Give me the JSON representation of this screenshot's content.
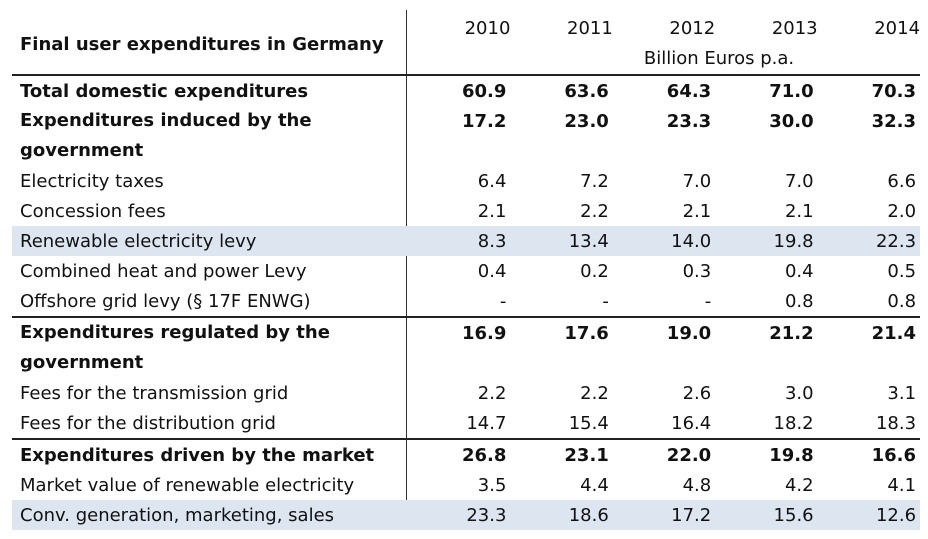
{
  "table": {
    "title": "Final user expenditures in Germany",
    "years": [
      "2010",
      "2011",
      "2012",
      "2013",
      "2014"
    ],
    "unit": "Billion Euros p.a.",
    "rows": [
      {
        "label": "Total domestic expenditures",
        "values": [
          "60.9",
          "63.6",
          "64.3",
          "71.0",
          "70.3"
        ],
        "bold": true,
        "topline": true,
        "tall": false,
        "shade": false
      },
      {
        "label": "Expenditures induced by  the government",
        "values": [
          "17.2",
          "23.0",
          "23.3",
          "30.0",
          "32.3"
        ],
        "bold": true,
        "topline": false,
        "tall": true,
        "shade": false
      },
      {
        "label": "Electricity taxes",
        "values": [
          "6.4",
          "7.2",
          "7.0",
          "7.0",
          "6.6"
        ],
        "bold": false,
        "topline": false,
        "tall": false,
        "shade": false
      },
      {
        "label": "Concession fees",
        "values": [
          "2.1",
          "2.2",
          "2.1",
          "2.1",
          "2.0"
        ],
        "bold": false,
        "topline": false,
        "tall": false,
        "shade": false
      },
      {
        "label": "Renewable electricity levy",
        "values": [
          "8.3",
          "13.4",
          "14.0",
          "19.8",
          "22.3"
        ],
        "bold": false,
        "topline": false,
        "tall": false,
        "shade": true
      },
      {
        "label": "Combined heat and power Levy",
        "values": [
          "0.4",
          "0.2",
          "0.3",
          "0.4",
          "0.5"
        ],
        "bold": false,
        "topline": false,
        "tall": false,
        "shade": false
      },
      {
        "label": "Offshore grid levy (§ 17F ENWG)",
        "values": [
          "-",
          "-",
          "-",
          "0.8",
          "0.8"
        ],
        "bold": false,
        "topline": false,
        "tall": false,
        "shade": false
      },
      {
        "label": "Expenditures regulated by  the government",
        "values": [
          "16.9",
          "17.6",
          "19.0",
          "21.2",
          "21.4"
        ],
        "bold": true,
        "topline": true,
        "tall": true,
        "shade": false
      },
      {
        "label": "Fees for the transmission grid",
        "values": [
          "2.2",
          "2.2",
          "2.6",
          "3.0",
          "3.1"
        ],
        "bold": false,
        "topline": false,
        "tall": false,
        "shade": false
      },
      {
        "label": "Fees for the distribution grid",
        "values": [
          "14.7",
          "15.4",
          "16.4",
          "18.2",
          "18.3"
        ],
        "bold": false,
        "topline": false,
        "tall": false,
        "shade": false
      },
      {
        "label": "Expenditures driven by the market",
        "values": [
          "26.8",
          "23.1",
          "22.0",
          "19.8",
          "16.6"
        ],
        "bold": true,
        "topline": true,
        "tall": false,
        "shade": false
      },
      {
        "label": "Market value of renewable electricity",
        "values": [
          "3.5",
          "4.4",
          "4.8",
          "4.2",
          "4.1"
        ],
        "bold": false,
        "topline": false,
        "tall": false,
        "shade": false
      },
      {
        "label": "Conv.  generation, marketing, sales",
        "values": [
          "23.3",
          "18.6",
          "17.2",
          "15.6",
          "12.6"
        ],
        "bold": false,
        "topline": false,
        "tall": false,
        "shade": true
      }
    ]
  }
}
